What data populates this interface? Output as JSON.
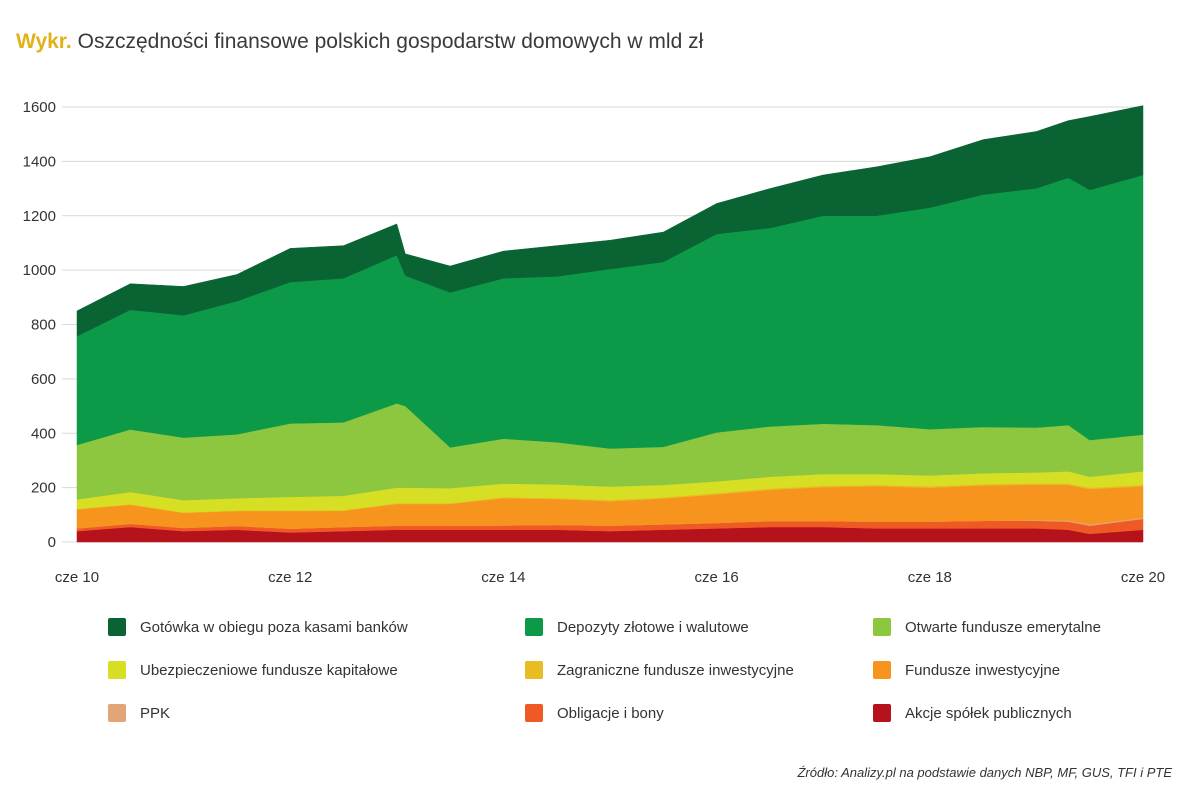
{
  "title": {
    "prefix": "Wykr.",
    "text": "Oszczędności finansowe polskich gospodarstw domowych w mld zł"
  },
  "source": "Źródło: Analizy.pl na podstawie danych NBP, MF, GUS, TFI i PTE",
  "chart_data": {
    "type": "area",
    "stacked": true,
    "x": [
      2010.5,
      2011.0,
      2011.5,
      2012.0,
      2012.5,
      2013.0,
      2013.5,
      2013.58,
      2014.0,
      2014.5,
      2015.0,
      2015.5,
      2016.0,
      2016.5,
      2017.0,
      2017.5,
      2018.0,
      2018.5,
      2019.0,
      2019.5,
      2019.8,
      2020.0,
      2020.5
    ],
    "xticks": [
      {
        "value": 2010.5,
        "label": "cze 10"
      },
      {
        "value": 2012.5,
        "label": "cze 12"
      },
      {
        "value": 2014.5,
        "label": "cze 14"
      },
      {
        "value": 2016.5,
        "label": "cze 16"
      },
      {
        "value": 2018.5,
        "label": "cze 18"
      },
      {
        "value": 2020.5,
        "label": "cze 20"
      }
    ],
    "yticks": [
      0,
      200,
      400,
      600,
      800,
      1000,
      1200,
      1400,
      1600
    ],
    "ylim": [
      0,
      1600
    ],
    "xlim": [
      2010.5,
      2020.5
    ],
    "grid": true,
    "legend_position": "bottom",
    "series": [
      {
        "name": "Akcje spółek publicznych",
        "color": "#b5121b",
        "values": [
          40,
          55,
          40,
          45,
          35,
          40,
          45,
          45,
          45,
          45,
          45,
          40,
          45,
          50,
          55,
          55,
          50,
          50,
          50,
          50,
          45,
          30,
          45
        ]
      },
      {
        "name": "Obligacje i bony",
        "color": "#ef5a24",
        "values": [
          10,
          12,
          12,
          14,
          14,
          15,
          15,
          15,
          15,
          16,
          18,
          20,
          20,
          20,
          22,
          22,
          25,
          25,
          28,
          28,
          30,
          30,
          40
        ]
      },
      {
        "name": "PPK",
        "color": "#e3a477",
        "values": [
          0,
          0,
          0,
          0,
          0,
          0,
          0,
          0,
          0,
          0,
          0,
          0,
          0,
          0,
          0,
          0,
          0,
          0,
          0,
          3,
          5,
          5,
          5
        ]
      },
      {
        "name": "Fundusze inwestycyjne",
        "color": "#f7941d",
        "values": [
          70,
          70,
          55,
          55,
          65,
          60,
          80,
          80,
          80,
          100,
          95,
          90,
          95,
          105,
          115,
          125,
          130,
          125,
          130,
          130,
          130,
          130,
          115
        ]
      },
      {
        "name": "Zagraniczne fundusze inwestycyjne",
        "color": "#e8bc24",
        "values": [
          2,
          2,
          2,
          2,
          2,
          2,
          3,
          3,
          3,
          4,
          4,
          4,
          4,
          5,
          5,
          5,
          5,
          5,
          5,
          5,
          5,
          5,
          5
        ]
      },
      {
        "name": "Ubezpieczeniowe fundusze kapitałowe",
        "color": "#d6df24",
        "values": [
          35,
          45,
          45,
          45,
          50,
          53,
          57,
          57,
          55,
          50,
          50,
          50,
          46,
          43,
          43,
          43,
          40,
          40,
          40,
          40,
          45,
          40,
          50
        ]
      },
      {
        "name": "Otwarte fundusze emerytalne",
        "color": "#8dc63f",
        "values": [
          200,
          230,
          230,
          235,
          270,
          270,
          310,
          300,
          150,
          165,
          155,
          140,
          140,
          180,
          185,
          185,
          180,
          170,
          170,
          165,
          170,
          135,
          135
        ]
      },
      {
        "name": "Depozyty złotowe i walutowe",
        "color": "#0d9a48",
        "values": [
          400,
          440,
          450,
          490,
          520,
          530,
          545,
          480,
          570,
          590,
          610,
          660,
          680,
          730,
          730,
          765,
          770,
          815,
          855,
          880,
          910,
          920,
          955
        ]
      },
      {
        "name": "Gotówka w obiegu poza kasami banków",
        "color": "#0a6332",
        "values": [
          93,
          96,
          106,
          98,
          124,
          120,
          115,
          80,
          97,
          100,
          113,
          106,
          110,
          112,
          145,
          150,
          180,
          187,
          202,
          209,
          210,
          270,
          255
        ]
      }
    ]
  }
}
